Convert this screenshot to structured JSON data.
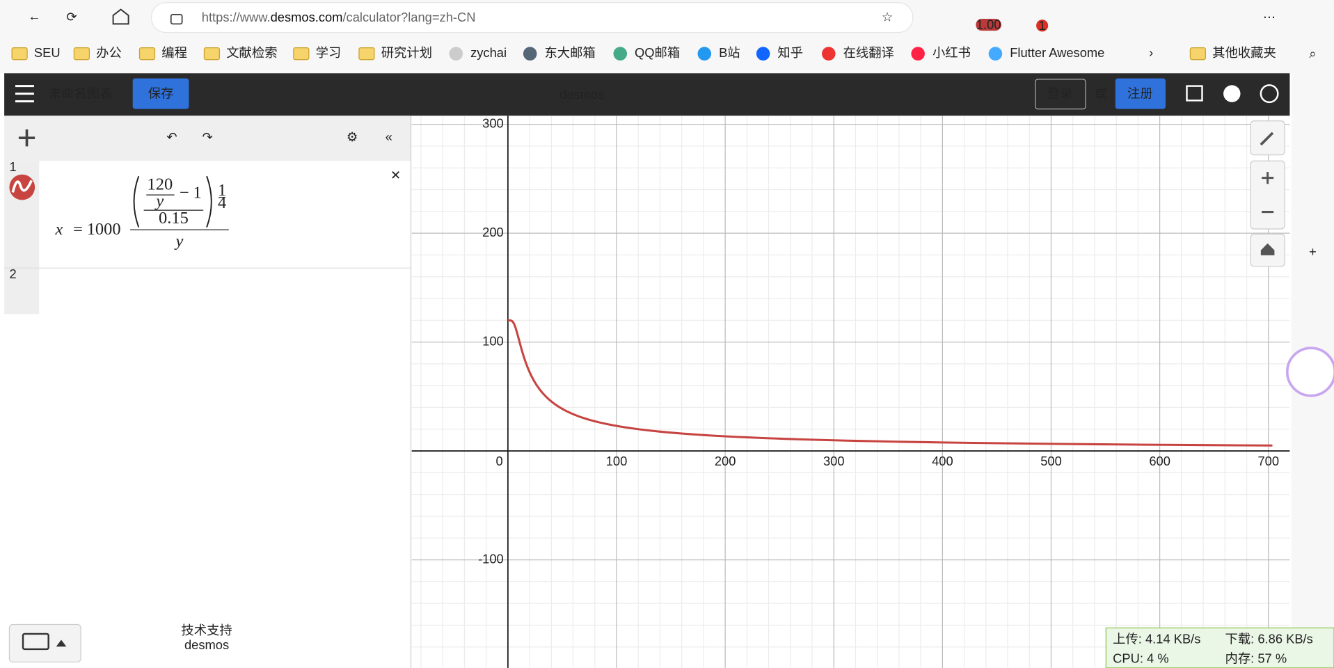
{
  "browser": {
    "url_prefix": "https://www.",
    "url_domain": "desmos.com",
    "url_path": "/calculator?lang=zh-CN",
    "zoom": "1.00",
    "badge": "1",
    "bookmarks": [
      "SEU",
      "办公",
      "编程",
      "文献检索",
      "学习",
      "研究计划",
      "zychai",
      "东大邮箱",
      "QQ邮箱",
      "B站",
      "知乎",
      "在线翻译",
      "小红书",
      "Flutter Awesome"
    ],
    "more_bookmarks": "其他收藏夹"
  },
  "app": {
    "title": "未命名图表",
    "save": "保存",
    "logo": "desmos",
    "login": "登录",
    "or": "或",
    "signup": "注册",
    "powered_by": "技术支持",
    "powered_logo": "desmos"
  },
  "rows": [
    1,
    2
  ],
  "expression": {
    "lhs": "x",
    "eq": "=",
    "coefficient": 1000,
    "a": 120,
    "var": "y",
    "minus": "−",
    "b": 1,
    "c": 0.15,
    "p": 1,
    "q": 4
  },
  "graph": {
    "xticks": [
      0,
      100,
      200,
      300,
      400,
      500,
      600,
      700
    ],
    "yticks": [
      300,
      200,
      100,
      -100
    ]
  },
  "netspeed": {
    "upload": "上传: 4.14 KB/s",
    "download": "下载: 6.86 KB/s",
    "cpu": "CPU: 4 %",
    "memory": "内存: 57 %"
  }
}
